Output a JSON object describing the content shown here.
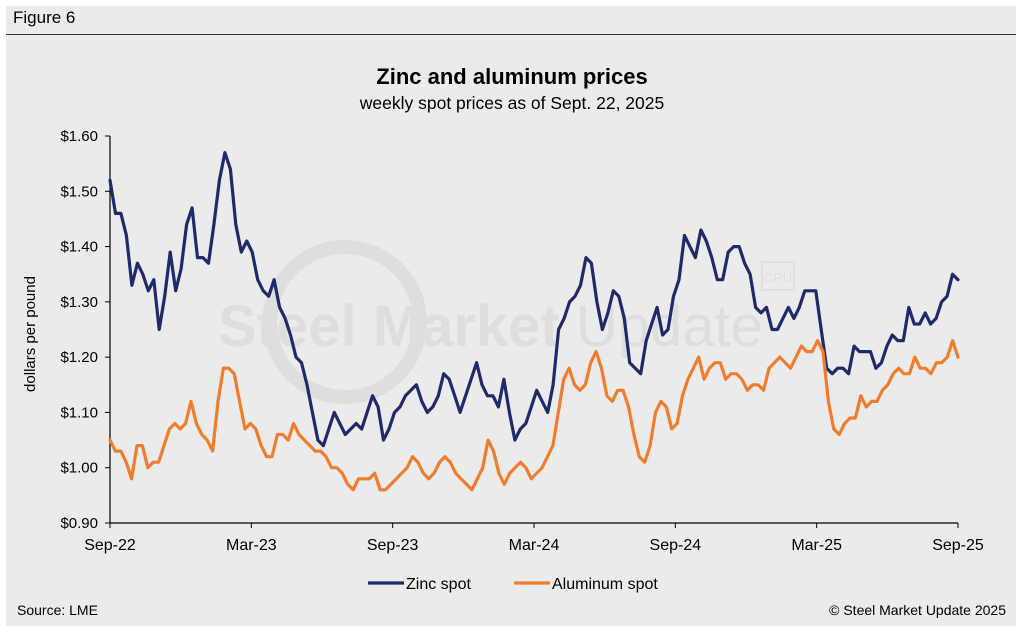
{
  "figure_label": "Figure 6",
  "source": "Source: LME",
  "copyright": "© Steel Market Update 2025",
  "watermark": {
    "text_a": "Steel Market ",
    "text_b": "Update",
    "badge": "CRU"
  },
  "colors": {
    "zinc": "#1f2a6b",
    "aluminum": "#ef7d2d",
    "background": "#ebebeb"
  },
  "chart_data": {
    "type": "line",
    "title": "Zinc and aluminum prices",
    "subtitle": "weekly spot prices as of Sept. 22, 2025",
    "ylabel": "dollars per pound",
    "xlabel": "",
    "ylim": [
      0.9,
      1.6
    ],
    "yticks": [
      {
        "v": 1.6,
        "label": "$1.60"
      },
      {
        "v": 1.5,
        "label": "$1.50"
      },
      {
        "v": 1.4,
        "label": "$1.40"
      },
      {
        "v": 1.3,
        "label": "$1.30"
      },
      {
        "v": 1.2,
        "label": "$1.20"
      },
      {
        "v": 1.1,
        "label": "$1.10"
      },
      {
        "v": 1.0,
        "label": "$1.00"
      },
      {
        "v": 0.9,
        "label": "$0.90"
      }
    ],
    "xticks": [
      "Sep-22",
      "Mar-23",
      "Sep-23",
      "Mar-24",
      "Sep-24",
      "Mar-25",
      "Sep-25"
    ],
    "grid": false,
    "legend": "bottom",
    "series": [
      {
        "name": "Zinc spot",
        "values": [
          1.52,
          1.46,
          1.46,
          1.42,
          1.33,
          1.37,
          1.35,
          1.32,
          1.34,
          1.25,
          1.31,
          1.39,
          1.32,
          1.36,
          1.44,
          1.47,
          1.38,
          1.38,
          1.37,
          1.44,
          1.52,
          1.57,
          1.54,
          1.44,
          1.39,
          1.41,
          1.39,
          1.34,
          1.32,
          1.31,
          1.34,
          1.29,
          1.27,
          1.24,
          1.2,
          1.19,
          1.15,
          1.1,
          1.05,
          1.04,
          1.07,
          1.1,
          1.08,
          1.06,
          1.07,
          1.08,
          1.07,
          1.1,
          1.13,
          1.11,
          1.05,
          1.07,
          1.1,
          1.11,
          1.13,
          1.14,
          1.15,
          1.12,
          1.1,
          1.11,
          1.13,
          1.17,
          1.16,
          1.13,
          1.1,
          1.13,
          1.16,
          1.19,
          1.15,
          1.13,
          1.13,
          1.11,
          1.16,
          1.1,
          1.05,
          1.07,
          1.08,
          1.11,
          1.14,
          1.12,
          1.1,
          1.15,
          1.25,
          1.27,
          1.3,
          1.31,
          1.33,
          1.38,
          1.37,
          1.3,
          1.25,
          1.28,
          1.32,
          1.31,
          1.27,
          1.19,
          1.18,
          1.17,
          1.23,
          1.26,
          1.29,
          1.24,
          1.25,
          1.31,
          1.34,
          1.42,
          1.4,
          1.38,
          1.43,
          1.41,
          1.38,
          1.34,
          1.34,
          1.39,
          1.4,
          1.4,
          1.37,
          1.35,
          1.29,
          1.28,
          1.29,
          1.25,
          1.25,
          1.27,
          1.29,
          1.27,
          1.29,
          1.32,
          1.32,
          1.32,
          1.25,
          1.18,
          1.17,
          1.18,
          1.18,
          1.17,
          1.22,
          1.21,
          1.21,
          1.21,
          1.18,
          1.19,
          1.22,
          1.24,
          1.23,
          1.23,
          1.29,
          1.26,
          1.26,
          1.28,
          1.26,
          1.27,
          1.3,
          1.31,
          1.35,
          1.34
        ]
      },
      {
        "name": "Aluminum spot",
        "values": [
          1.05,
          1.03,
          1.03,
          1.01,
          0.98,
          1.04,
          1.04,
          1.0,
          1.01,
          1.01,
          1.04,
          1.07,
          1.08,
          1.07,
          1.08,
          1.12,
          1.08,
          1.06,
          1.05,
          1.03,
          1.12,
          1.18,
          1.18,
          1.17,
          1.12,
          1.07,
          1.08,
          1.07,
          1.04,
          1.02,
          1.02,
          1.06,
          1.06,
          1.05,
          1.08,
          1.06,
          1.05,
          1.04,
          1.03,
          1.03,
          1.02,
          1.0,
          1.0,
          0.99,
          0.97,
          0.96,
          0.98,
          0.98,
          0.98,
          0.99,
          0.96,
          0.96,
          0.97,
          0.98,
          0.99,
          1.0,
          1.02,
          1.01,
          0.99,
          0.98,
          0.99,
          1.01,
          1.02,
          1.01,
          0.99,
          0.98,
          0.97,
          0.96,
          0.98,
          1.0,
          1.05,
          1.03,
          0.99,
          0.97,
          0.99,
          1.0,
          1.01,
          1.0,
          0.98,
          0.99,
          1.0,
          1.02,
          1.04,
          1.1,
          1.16,
          1.18,
          1.15,
          1.14,
          1.15,
          1.19,
          1.21,
          1.18,
          1.13,
          1.12,
          1.14,
          1.14,
          1.11,
          1.06,
          1.02,
          1.01,
          1.04,
          1.1,
          1.12,
          1.11,
          1.07,
          1.08,
          1.13,
          1.16,
          1.18,
          1.2,
          1.16,
          1.18,
          1.19,
          1.19,
          1.16,
          1.17,
          1.17,
          1.16,
          1.14,
          1.15,
          1.15,
          1.14,
          1.18,
          1.19,
          1.2,
          1.19,
          1.18,
          1.2,
          1.22,
          1.21,
          1.21,
          1.23,
          1.21,
          1.12,
          1.07,
          1.06,
          1.08,
          1.09,
          1.09,
          1.13,
          1.11,
          1.12,
          1.12,
          1.14,
          1.15,
          1.17,
          1.18,
          1.17,
          1.17,
          1.2,
          1.18,
          1.18,
          1.17,
          1.19,
          1.19,
          1.2,
          1.23,
          1.2
        ]
      }
    ]
  }
}
